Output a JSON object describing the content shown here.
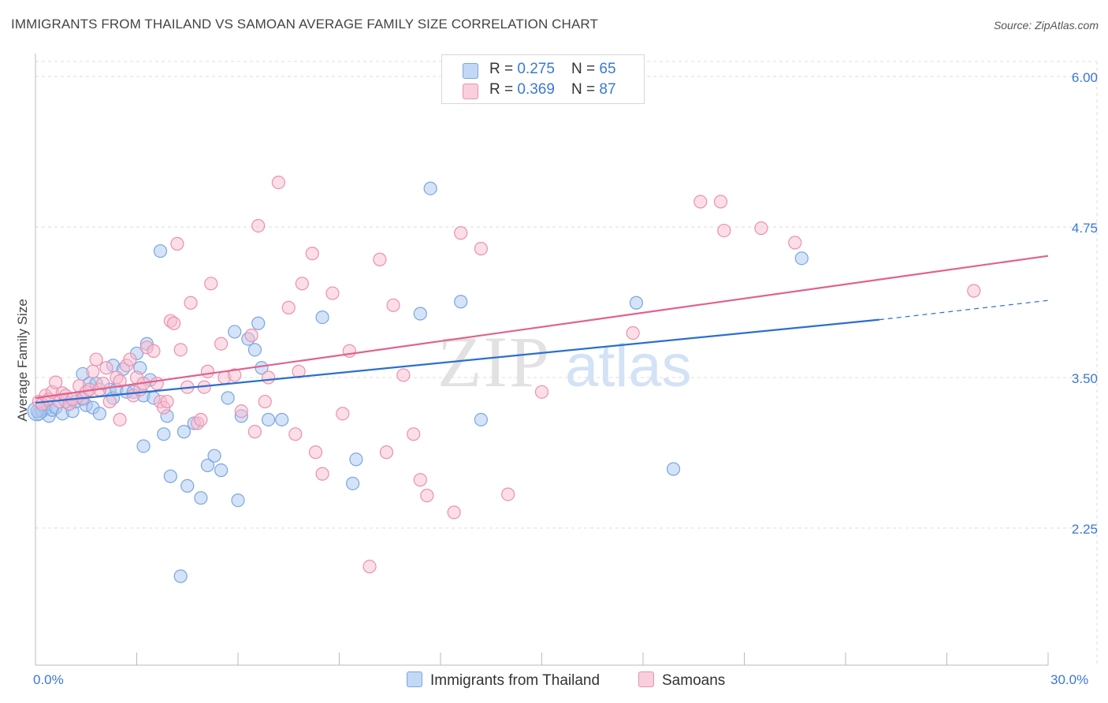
{
  "title": "IMMIGRANTS FROM THAILAND VS SAMOAN AVERAGE FAMILY SIZE CORRELATION CHART",
  "source": "Source: ZipAtlas.com",
  "watermark": {
    "zip": "ZIP",
    "atlas": "atlas"
  },
  "legend": {
    "rows": [
      {
        "r_label": "R = ",
        "r_value": "0.275",
        "n_label": "N = ",
        "n_value": "65"
      },
      {
        "r_label": "R = ",
        "r_value": "0.369",
        "n_label": "N = ",
        "n_value": "87"
      }
    ]
  },
  "bottom_legend": [
    "Immigrants from Thailand",
    "Samoans"
  ],
  "colors": {
    "blue_fill": "#aac8f0",
    "blue_stroke": "#7aa6e0",
    "blue_line": "#2a6fd0",
    "pink_fill": "#f7bdd0",
    "pink_stroke": "#eb90b0",
    "pink_line": "#e0628f",
    "axis_text": "#3a78d4",
    "grid": "#dddddd"
  },
  "chart_data": {
    "type": "scatter",
    "title": "IMMIGRANTS FROM THAILAND VS SAMOAN AVERAGE FAMILY SIZE CORRELATION CHART",
    "xlabel": "",
    "ylabel": "Average Family Size",
    "xlim": [
      0,
      30
    ],
    "ylim": [
      1.0,
      6.2
    ],
    "x_tick_labels": [
      "0.0%",
      "30.0%"
    ],
    "y_ticks": [
      2.25,
      3.5,
      4.75,
      6.0
    ],
    "y_tick_labels": [
      "2.25",
      "3.50",
      "4.75",
      "6.00"
    ],
    "grid": true,
    "legend_placement": "top-center",
    "series": [
      {
        "name": "Immigrants from Thailand",
        "color": "#aac8f0",
        "trend": {
          "x": [
            0,
            25.0
          ],
          "y": [
            3.29,
            3.98
          ],
          "dashed_extension": {
            "x": [
              25.0,
              30.0
            ],
            "y": [
              3.98,
              4.14
            ]
          }
        },
        "points": [
          [
            0.1,
            3.2
          ],
          [
            0.2,
            3.22
          ],
          [
            0.3,
            3.24
          ],
          [
            0.4,
            3.18
          ],
          [
            0.5,
            3.23
          ],
          [
            0.6,
            3.25
          ],
          [
            0.8,
            3.2
          ],
          [
            1.0,
            3.28
          ],
          [
            1.1,
            3.22
          ],
          [
            1.2,
            3.3
          ],
          [
            1.4,
            3.32
          ],
          [
            1.5,
            3.27
          ],
          [
            1.4,
            3.53
          ],
          [
            1.6,
            3.45
          ],
          [
            1.7,
            3.25
          ],
          [
            1.8,
            3.45
          ],
          [
            1.9,
            3.2
          ],
          [
            2.2,
            3.4
          ],
          [
            2.3,
            3.33
          ],
          [
            2.3,
            3.6
          ],
          [
            2.4,
            3.4
          ],
          [
            2.6,
            3.57
          ],
          [
            2.7,
            3.38
          ],
          [
            2.9,
            3.38
          ],
          [
            3.0,
            3.7
          ],
          [
            3.1,
            3.58
          ],
          [
            3.2,
            3.35
          ],
          [
            3.2,
            2.93
          ],
          [
            3.3,
            3.78
          ],
          [
            3.4,
            3.48
          ],
          [
            3.5,
            3.33
          ],
          [
            3.7,
            4.55
          ],
          [
            3.8,
            3.03
          ],
          [
            3.9,
            3.18
          ],
          [
            4.0,
            2.68
          ],
          [
            4.3,
            1.85
          ],
          [
            4.4,
            3.05
          ],
          [
            4.5,
            2.6
          ],
          [
            4.7,
            3.12
          ],
          [
            4.9,
            2.5
          ],
          [
            5.1,
            2.77
          ],
          [
            5.3,
            2.85
          ],
          [
            5.5,
            2.73
          ],
          [
            5.7,
            3.33
          ],
          [
            5.9,
            3.88
          ],
          [
            6.0,
            2.48
          ],
          [
            6.1,
            3.18
          ],
          [
            6.3,
            3.82
          ],
          [
            6.5,
            3.73
          ],
          [
            6.6,
            3.95
          ],
          [
            6.7,
            3.58
          ],
          [
            6.9,
            3.15
          ],
          [
            7.3,
            3.15
          ],
          [
            8.5,
            4.0
          ],
          [
            9.4,
            2.62
          ],
          [
            9.5,
            2.82
          ],
          [
            11.4,
            4.03
          ],
          [
            11.7,
            5.07
          ],
          [
            12.6,
            4.13
          ],
          [
            13.2,
            3.15
          ],
          [
            17.8,
            4.12
          ],
          [
            18.9,
            2.74
          ],
          [
            22.7,
            4.49
          ],
          [
            0.05,
            3.22
          ],
          [
            0.9,
            3.3
          ]
        ]
      },
      {
        "name": "Samoans",
        "color": "#f7bdd0",
        "trend": {
          "x": [
            0,
            30.0
          ],
          "y": [
            3.33,
            4.51
          ]
        },
        "points": [
          [
            0.1,
            3.3
          ],
          [
            0.2,
            3.28
          ],
          [
            0.3,
            3.35
          ],
          [
            0.4,
            3.32
          ],
          [
            0.5,
            3.38
          ],
          [
            0.6,
            3.46
          ],
          [
            0.7,
            3.3
          ],
          [
            0.8,
            3.37
          ],
          [
            0.9,
            3.35
          ],
          [
            1.0,
            3.28
          ],
          [
            1.1,
            3.32
          ],
          [
            1.3,
            3.43
          ],
          [
            1.4,
            3.33
          ],
          [
            1.5,
            3.38
          ],
          [
            1.6,
            3.4
          ],
          [
            1.7,
            3.55
          ],
          [
            1.8,
            3.65
          ],
          [
            1.9,
            3.4
          ],
          [
            2.0,
            3.45
          ],
          [
            2.1,
            3.58
          ],
          [
            2.2,
            3.3
          ],
          [
            2.4,
            3.5
          ],
          [
            2.5,
            3.47
          ],
          [
            2.5,
            3.15
          ],
          [
            2.7,
            3.6
          ],
          [
            2.8,
            3.65
          ],
          [
            2.9,
            3.35
          ],
          [
            3.0,
            3.5
          ],
          [
            3.1,
            3.4
          ],
          [
            3.2,
            3.45
          ],
          [
            3.3,
            3.75
          ],
          [
            3.5,
            3.72
          ],
          [
            3.6,
            3.45
          ],
          [
            3.7,
            3.3
          ],
          [
            3.8,
            3.25
          ],
          [
            3.9,
            3.3
          ],
          [
            4.0,
            3.97
          ],
          [
            4.1,
            3.95
          ],
          [
            4.2,
            4.61
          ],
          [
            4.3,
            3.73
          ],
          [
            4.5,
            3.42
          ],
          [
            4.6,
            4.12
          ],
          [
            4.8,
            3.12
          ],
          [
            4.9,
            3.15
          ],
          [
            5.0,
            3.42
          ],
          [
            5.1,
            3.55
          ],
          [
            5.2,
            4.28
          ],
          [
            5.5,
            3.78
          ],
          [
            5.6,
            3.5
          ],
          [
            5.9,
            3.52
          ],
          [
            6.1,
            3.22
          ],
          [
            6.4,
            3.85
          ],
          [
            6.5,
            3.05
          ],
          [
            6.6,
            4.76
          ],
          [
            6.8,
            3.3
          ],
          [
            6.9,
            3.5
          ],
          [
            7.2,
            5.12
          ],
          [
            7.5,
            4.08
          ],
          [
            7.7,
            3.03
          ],
          [
            7.8,
            3.55
          ],
          [
            7.9,
            4.28
          ],
          [
            8.2,
            4.53
          ],
          [
            8.3,
            2.88
          ],
          [
            8.5,
            2.7
          ],
          [
            8.8,
            4.2
          ],
          [
            9.1,
            3.2
          ],
          [
            9.3,
            3.72
          ],
          [
            10.2,
            4.48
          ],
          [
            10.4,
            2.88
          ],
          [
            10.6,
            4.1
          ],
          [
            10.9,
            3.52
          ],
          [
            11.2,
            3.03
          ],
          [
            11.4,
            2.65
          ],
          [
            11.6,
            2.52
          ],
          [
            12.4,
            2.38
          ],
          [
            12.6,
            4.7
          ],
          [
            13.2,
            4.57
          ],
          [
            14.0,
            2.53
          ],
          [
            15.0,
            3.38
          ],
          [
            17.7,
            3.87
          ],
          [
            19.7,
            4.96
          ],
          [
            20.3,
            4.96
          ],
          [
            20.4,
            4.72
          ],
          [
            21.5,
            4.74
          ],
          [
            22.5,
            4.62
          ],
          [
            27.8,
            4.22
          ],
          [
            9.9,
            1.93
          ]
        ]
      }
    ]
  }
}
